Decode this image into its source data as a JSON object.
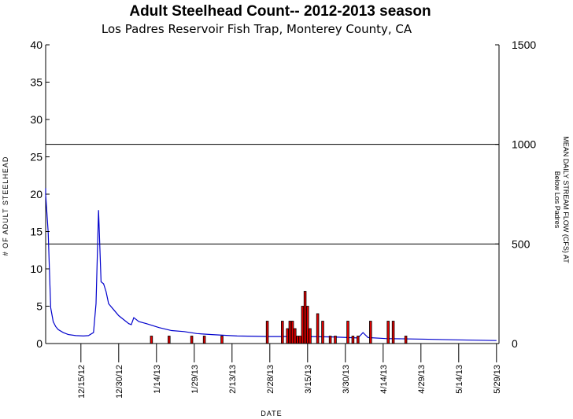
{
  "chart_data": {
    "type": "bar",
    "title": "Adult Steelhead Count-- 2012-2013 season",
    "subtitle": "Los Padres Reservoir Fish Trap, Monterey County, CA",
    "xlabel": "DATE",
    "ylabel": "# OF ADULT STEELHEAD",
    "y2label_line1": "MEAN DAILY STREAM FLOW (CFS) AT",
    "y2label_line2": "Below Los Padres",
    "ylim": [
      0,
      40
    ],
    "yticks": [
      "0",
      "5",
      "10",
      "15",
      "20",
      "25",
      "30",
      "35",
      "40"
    ],
    "y2lim": [
      0,
      1500
    ],
    "y2ticks": [
      "0",
      "500",
      "1000",
      "1500"
    ],
    "y2_reference_lines": [
      500,
      1000
    ],
    "xlim": [
      "2012-12-01",
      "2013-05-30"
    ],
    "xticks": [
      "12/15/12",
      "12/30/12",
      "1/14/13",
      "1/29/13",
      "2/13/13",
      "2/28/13",
      "3/15/13",
      "3/30/13",
      "4/14/13",
      "4/29/13",
      "5/14/13",
      "5/29/13"
    ],
    "grid": false,
    "bar_color": "#e60000",
    "flow_color": "#0000cc",
    "series": [
      {
        "type": "bar",
        "axis": "left",
        "x": [
          "2013-01-12",
          "2013-01-19",
          "2013-01-28",
          "2013-02-02",
          "2013-02-09",
          "2013-02-27",
          "2013-03-05",
          "2013-03-07",
          "2013-03-08",
          "2013-03-09",
          "2013-03-10",
          "2013-03-11",
          "2013-03-12",
          "2013-03-13",
          "2013-03-14",
          "2013-03-15",
          "2013-03-16",
          "2013-03-19",
          "2013-03-21",
          "2013-03-24",
          "2013-03-26",
          "2013-03-31",
          "2013-04-02",
          "2013-04-04",
          "2013-04-09",
          "2013-04-16",
          "2013-04-18",
          "2013-04-23"
        ],
        "values": [
          1,
          1,
          1,
          1,
          1,
          3,
          3,
          2,
          3,
          3,
          2,
          1,
          1,
          5,
          7,
          5,
          2,
          4,
          3,
          1,
          1,
          3,
          1,
          1,
          3,
          3,
          3,
          1
        ]
      },
      {
        "type": "line",
        "axis": "right",
        "x": [
          "2012-12-01",
          "2012-12-01",
          "2012-12-02",
          "2012-12-03",
          "2012-12-04",
          "2012-12-05",
          "2012-12-06",
          "2012-12-08",
          "2012-12-10",
          "2012-12-13",
          "2012-12-16",
          "2012-12-18",
          "2012-12-20",
          "2012-12-21",
          "2012-12-22",
          "2012-12-23",
          "2012-12-24",
          "2012-12-25",
          "2012-12-26",
          "2012-12-28",
          "2012-12-30",
          "2013-01-01",
          "2013-01-03",
          "2013-01-04",
          "2013-01-05",
          "2013-01-07",
          "2013-01-10",
          "2013-01-15",
          "2013-01-20",
          "2013-01-25",
          "2013-01-30",
          "2013-02-05",
          "2013-02-15",
          "2013-02-28",
          "2013-03-15",
          "2013-03-25",
          "2013-03-31",
          "2013-04-04",
          "2013-04-06",
          "2013-04-08",
          "2013-04-15",
          "2013-04-30",
          "2013-05-15",
          "2013-05-29"
        ],
        "values": [
          780,
          750,
          560,
          180,
          110,
          85,
          70,
          55,
          45,
          40,
          38,
          40,
          55,
          200,
          670,
          310,
          300,
          260,
          200,
          170,
          140,
          120,
          100,
          95,
          130,
          110,
          100,
          80,
          65,
          60,
          50,
          45,
          38,
          35,
          35,
          33,
          30,
          28,
          55,
          30,
          25,
          22,
          18,
          15
        ]
      }
    ]
  }
}
